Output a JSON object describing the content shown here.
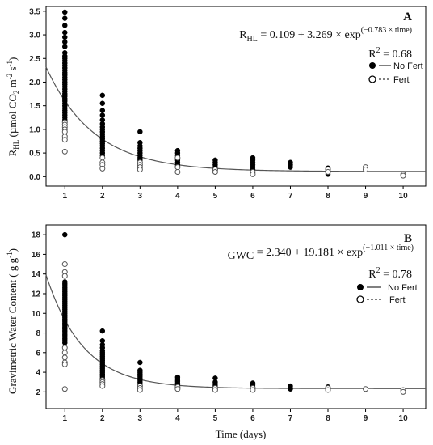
{
  "x_axis_title": "Time (days)",
  "chart_data": [
    {
      "type": "scatter",
      "panel_label": "A",
      "ylabel_main": "R",
      "ylabel_sub": "HL",
      "ylabel_rest": " (µmol CO",
      "ylabel_sub2": "2",
      "ylabel_tail": " m",
      "ylabel_sup1": "-2",
      "ylabel_tail2": " s",
      "ylabel_sup2": "-1",
      "ylabel_close": ")",
      "equation": {
        "lhs": "R",
        "lhs_sub": "HL",
        "rhs": " = 0.109 + 3.269 × exp",
        "exponent": "(−0.783 × time)",
        "r2_label": "R",
        "r2_sup": "2",
        "r2_value": " = 0.68"
      },
      "fit": {
        "a": 0.109,
        "b": 3.269,
        "k": -0.783
      },
      "xlim": [
        0.5,
        10.6
      ],
      "ylim": [
        -0.2,
        3.6
      ],
      "x_ticks": [
        1,
        2,
        3,
        4,
        5,
        6,
        7,
        8,
        9,
        10
      ],
      "y_ticks": [
        "0.0",
        "0.5",
        "1.0",
        "1.5",
        "2.0",
        "2.5",
        "3.0",
        "3.5"
      ],
      "legend": [
        {
          "label": "No Fert",
          "marker": "filled",
          "line": "solid"
        },
        {
          "label": "Fert",
          "marker": "open",
          "line": "dashed"
        }
      ],
      "series": [
        {
          "name": "No Fert",
          "x": [
            1,
            1,
            1,
            1,
            1,
            1,
            1,
            1,
            1,
            1,
            1,
            1,
            1,
            1,
            1,
            1,
            1,
            1,
            1,
            1,
            1,
            1,
            1,
            1,
            1,
            1,
            1,
            1,
            1,
            1,
            1,
            1,
            1,
            1,
            1,
            1,
            2,
            2,
            2,
            2,
            2,
            2,
            2,
            2,
            2,
            2,
            2,
            2,
            2,
            2,
            2,
            2,
            2,
            2,
            2,
            3,
            3,
            3,
            3,
            3,
            3,
            3,
            3,
            3,
            3,
            4,
            4,
            4,
            4,
            4,
            4,
            4,
            5,
            5,
            5,
            5,
            5,
            5,
            6,
            6,
            6,
            6,
            6,
            6,
            7,
            7,
            7,
            8,
            8,
            8,
            8
          ],
          "y": [
            3.48,
            3.35,
            3.2,
            3.05,
            2.95,
            2.85,
            2.75,
            2.62,
            2.55,
            2.5,
            2.45,
            2.4,
            2.35,
            2.3,
            2.25,
            2.2,
            2.15,
            2.1,
            2.05,
            2.0,
            1.95,
            1.9,
            1.85,
            1.8,
            1.75,
            1.7,
            1.65,
            1.6,
            1.55,
            1.5,
            1.45,
            1.4,
            1.35,
            1.3,
            1.25,
            1.2,
            1.72,
            1.55,
            1.4,
            1.3,
            1.2,
            1.12,
            1.05,
            1.0,
            0.95,
            0.9,
            0.85,
            0.8,
            0.75,
            0.7,
            0.65,
            0.6,
            0.55,
            0.5,
            0.45,
            0.95,
            0.72,
            0.65,
            0.6,
            0.55,
            0.5,
            0.45,
            0.4,
            0.35,
            0.3,
            0.55,
            0.5,
            0.45,
            0.4,
            0.35,
            0.3,
            0.25,
            0.35,
            0.3,
            0.25,
            0.2,
            0.15,
            0.1,
            0.4,
            0.35,
            0.3,
            0.25,
            0.2,
            0.15,
            0.3,
            0.25,
            0.2,
            0.18,
            0.15,
            0.1,
            0.05
          ]
        },
        {
          "name": "Fert",
          "x": [
            1,
            1,
            1,
            1,
            1,
            1,
            1,
            1,
            2,
            2,
            2,
            2,
            3,
            3,
            3,
            3,
            4,
            4,
            4,
            5,
            5,
            6,
            6,
            8,
            8,
            9,
            9,
            10,
            10
          ],
          "y": [
            1.15,
            1.1,
            1.05,
            1.0,
            0.95,
            0.85,
            0.78,
            0.53,
            0.4,
            0.3,
            0.25,
            0.17,
            0.3,
            0.25,
            0.2,
            0.15,
            0.4,
            0.2,
            0.1,
            0.15,
            0.1,
            0.1,
            0.05,
            0.15,
            0.1,
            0.2,
            0.15,
            0.05,
            0.02
          ]
        }
      ]
    },
    {
      "type": "scatter",
      "panel_label": "B",
      "ylabel_main": "Gravimetric Water Content ( g g",
      "ylabel_sup1": "-1",
      "ylabel_close": ")",
      "equation": {
        "lhs": "GWC",
        "lhs_sub": "",
        "rhs": " = 2.340 + 19.181 × exp",
        "exponent": "(−1.011 × time)",
        "r2_label": "R",
        "r2_sup": "2",
        "r2_value": " = 0.78"
      },
      "fit": {
        "a": 2.34,
        "b": 19.181,
        "k": -1.011
      },
      "xlim": [
        0.5,
        10.6
      ],
      "ylim": [
        0.3,
        19.0
      ],
      "x_ticks": [
        1,
        2,
        3,
        4,
        5,
        6,
        7,
        8,
        9,
        10
      ],
      "y_ticks": [
        "2",
        "4",
        "6",
        "8",
        "10",
        "12",
        "14",
        "16",
        "18"
      ],
      "legend": [
        {
          "label": "No Fert",
          "marker": "filled",
          "line": "solid"
        },
        {
          "label": "Fert",
          "marker": "open",
          "line": "dashed"
        }
      ],
      "series": [
        {
          "name": "No Fert",
          "x": [
            1,
            1,
            1,
            1,
            1,
            1,
            1,
            1,
            1,
            1,
            1,
            1,
            1,
            1,
            1,
            1,
            1,
            1,
            1,
            1,
            1,
            1,
            1,
            1,
            1,
            1,
            1,
            1,
            1,
            1,
            1,
            1,
            1,
            2,
            2,
            2,
            2,
            2,
            2,
            2,
            2,
            2,
            2,
            2,
            2,
            2,
            2,
            2,
            2,
            2,
            2,
            2,
            3,
            3,
            3,
            3,
            3,
            3,
            3,
            3,
            3,
            3,
            4,
            4,
            4,
            4,
            4,
            4,
            5,
            5,
            5,
            5,
            5,
            5,
            6,
            6,
            6,
            6,
            6,
            7,
            7,
            7,
            8,
            8,
            8
          ],
          "y": [
            18.0,
            13.2,
            13.0,
            12.8,
            12.6,
            12.4,
            12.2,
            12.0,
            11.8,
            11.6,
            11.4,
            11.2,
            11.0,
            10.8,
            10.6,
            10.4,
            10.2,
            10.0,
            9.8,
            9.6,
            9.4,
            9.2,
            9.0,
            8.8,
            8.6,
            8.4,
            8.2,
            8.0,
            7.8,
            7.6,
            7.4,
            7.2,
            7.0,
            8.2,
            7.2,
            6.8,
            6.5,
            6.2,
            6.0,
            5.8,
            5.6,
            5.4,
            5.2,
            5.0,
            4.8,
            4.6,
            4.4,
            4.2,
            4.0,
            3.8,
            3.6,
            3.4,
            5.0,
            4.2,
            4.0,
            3.8,
            3.6,
            3.4,
            3.2,
            3.0,
            2.8,
            2.6,
            3.5,
            3.3,
            3.1,
            2.9,
            2.7,
            2.5,
            3.4,
            3.0,
            2.8,
            2.6,
            2.4,
            2.2,
            2.9,
            2.7,
            2.5,
            2.4,
            2.3,
            2.6,
            2.4,
            2.3,
            2.5,
            2.4,
            2.2
          ]
        },
        {
          "name": "Fert",
          "x": [
            1,
            1,
            1,
            1,
            1,
            1,
            1,
            1,
            1,
            2,
            2,
            2,
            2,
            3,
            3,
            3,
            4,
            4,
            5,
            5,
            6,
            6,
            8,
            8,
            9,
            10,
            10
          ],
          "y": [
            15.0,
            14.2,
            13.8,
            6.5,
            6.0,
            5.5,
            5.0,
            4.8,
            2.3,
            3.2,
            3.0,
            2.8,
            2.6,
            2.6,
            2.4,
            2.2,
            2.5,
            2.3,
            2.4,
            2.2,
            2.4,
            2.2,
            2.4,
            2.2,
            2.3,
            2.2,
            2.0
          ]
        }
      ]
    }
  ]
}
